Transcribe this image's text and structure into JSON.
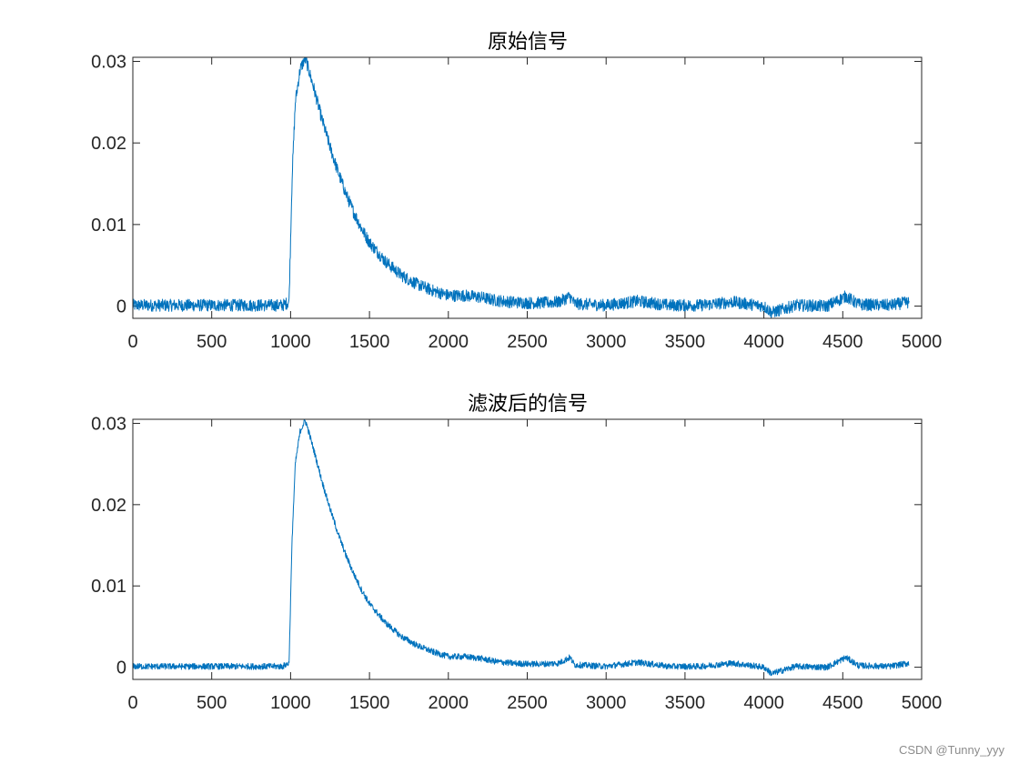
{
  "figure": {
    "watermark": "CSDN @Tunny_yyy"
  },
  "chart_data": [
    {
      "type": "line",
      "title": "原始信号",
      "xlabel": "",
      "ylabel": "",
      "xlim": [
        0,
        5000
      ],
      "ylim": [
        -0.0015,
        0.0305
      ],
      "xticks": [
        0,
        500,
        1000,
        1500,
        2000,
        2500,
        3000,
        3500,
        4000,
        4500,
        5000
      ],
      "xtick_labels": [
        "0",
        "500",
        "1000",
        "1500",
        "2000",
        "2500",
        "3000",
        "3500",
        "4000",
        "4500",
        "5000"
      ],
      "yticks": [
        0,
        0.01,
        0.02,
        0.03
      ],
      "ytick_labels": [
        "0",
        "0.01",
        "0.02",
        "0.03"
      ],
      "grid": false,
      "line_color": "#0072BD",
      "series": [
        {
          "x": [
            0,
            200,
            400,
            600,
            800,
            950,
            990,
            1010,
            1030,
            1060,
            1090,
            1100,
            1150,
            1200,
            1250,
            1300,
            1350,
            1400,
            1450,
            1500,
            1600,
            1700,
            1800,
            1900,
            2000,
            2100,
            2200,
            2300,
            2400,
            2500,
            2600,
            2700,
            2770,
            2800,
            3000,
            3200,
            3400,
            3600,
            3800,
            4000,
            4050,
            4200,
            4400,
            4520,
            4600,
            4800,
            4920
          ],
          "y": [
            0.0001,
            0.0001,
            0.0001,
            0.0001,
            0.0001,
            0.0001,
            0.0005,
            0.016,
            0.025,
            0.029,
            0.0303,
            0.03,
            0.0265,
            0.0228,
            0.0195,
            0.0165,
            0.0138,
            0.0115,
            0.0095,
            0.0078,
            0.0055,
            0.0038,
            0.0027,
            0.0019,
            0.0013,
            0.0013,
            0.0011,
            0.0007,
            0.0005,
            0.0004,
            0.0004,
            0.0005,
            0.0012,
            0.0003,
            0.0001,
            0.0006,
            0.0001,
            0.0001,
            0.0005,
            0.0,
            -0.0008,
            0.0001,
            0.0,
            0.0012,
            0.0002,
            0.0001,
            0.0005
          ]
        }
      ]
    },
    {
      "type": "line",
      "title": "滤波后的信号",
      "xlabel": "",
      "ylabel": "",
      "xlim": [
        0,
        5000
      ],
      "ylim": [
        -0.0015,
        0.0305
      ],
      "xticks": [
        0,
        500,
        1000,
        1500,
        2000,
        2500,
        3000,
        3500,
        4000,
        4500,
        5000
      ],
      "xtick_labels": [
        "0",
        "500",
        "1000",
        "1500",
        "2000",
        "2500",
        "3000",
        "3500",
        "4000",
        "4500",
        "5000"
      ],
      "yticks": [
        0,
        0.01,
        0.02,
        0.03
      ],
      "ytick_labels": [
        "0",
        "0.01",
        "0.02",
        "0.03"
      ],
      "grid": false,
      "line_color": "#0072BD",
      "series": [
        {
          "x": [
            0,
            200,
            400,
            600,
            800,
            950,
            990,
            1010,
            1030,
            1060,
            1090,
            1100,
            1150,
            1200,
            1250,
            1300,
            1350,
            1400,
            1450,
            1500,
            1600,
            1700,
            1800,
            1900,
            2000,
            2100,
            2200,
            2300,
            2400,
            2500,
            2600,
            2700,
            2770,
            2800,
            3000,
            3200,
            3400,
            3600,
            3800,
            4000,
            4050,
            4200,
            4400,
            4520,
            4600,
            4800,
            4920
          ],
          "y": [
            0.0001,
            0.0001,
            0.0001,
            0.0001,
            0.0001,
            0.0001,
            0.0005,
            0.016,
            0.025,
            0.029,
            0.0303,
            0.03,
            0.0265,
            0.0228,
            0.0195,
            0.0165,
            0.0138,
            0.0115,
            0.0095,
            0.0078,
            0.0055,
            0.0038,
            0.0027,
            0.0019,
            0.0013,
            0.0013,
            0.0011,
            0.0007,
            0.0005,
            0.0004,
            0.0004,
            0.0005,
            0.0012,
            0.0003,
            0.0001,
            0.0006,
            0.0001,
            0.0001,
            0.0005,
            0.0,
            -0.0008,
            0.0001,
            0.0,
            0.0012,
            0.0002,
            0.0001,
            0.0005
          ]
        }
      ]
    }
  ]
}
